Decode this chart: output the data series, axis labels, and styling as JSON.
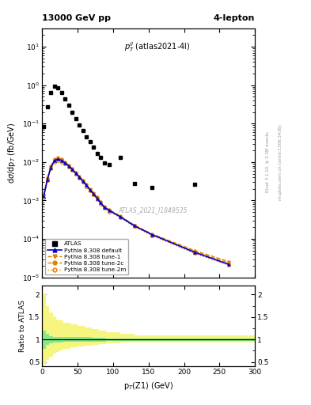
{
  "title_left": "13000 GeV pp",
  "title_right": "4-lepton",
  "plot_label": "$p_T^{ll}$ (atlas2021-4l)",
  "watermark": "ATLAS_2021_I1849535",
  "rivet_label": "Rivet 3.1.10, ≥ 2.3M events",
  "mcplots_label": "mcplots.cern.ch [arXiv:1306.3436]",
  "ylabel_main": "dσ/dp_T (fb/GeV)",
  "ylabel_ratio": "Ratio to ATLAS",
  "xlabel": "p$_T$(Z1) (GeV)",
  "xlim": [
    0,
    300
  ],
  "ylim_main": [
    1e-05,
    30
  ],
  "ylim_ratio": [
    0.4,
    2.2
  ],
  "atlas_x": [
    2.5,
    7.5,
    12.5,
    17.5,
    22.5,
    27.5,
    32.5,
    37.5,
    42.5,
    47.5,
    52.5,
    57.5,
    62.5,
    67.5,
    72.5,
    77.5,
    82.5,
    87.5,
    95,
    110,
    130,
    155,
    215
  ],
  "atlas_y": [
    0.083,
    0.28,
    0.65,
    0.95,
    0.87,
    0.65,
    0.45,
    0.3,
    0.195,
    0.135,
    0.092,
    0.065,
    0.046,
    0.034,
    0.024,
    0.017,
    0.013,
    0.0095,
    0.0085,
    0.013,
    0.0028,
    0.0022,
    0.0027
  ],
  "pythia_x": [
    2.5,
    7.5,
    12.5,
    17.5,
    22.5,
    27.5,
    32.5,
    37.5,
    42.5,
    47.5,
    52.5,
    57.5,
    62.5,
    67.5,
    72.5,
    77.5,
    82.5,
    87.5,
    95,
    110,
    130,
    155,
    215,
    262.5
  ],
  "pythia_default_y": [
    0.0013,
    0.0035,
    0.0072,
    0.011,
    0.012,
    0.011,
    0.0095,
    0.008,
    0.0065,
    0.0052,
    0.0041,
    0.0032,
    0.0025,
    0.0019,
    0.0015,
    0.00115,
    0.00088,
    0.00067,
    0.00055,
    0.00038,
    0.00022,
    0.00013,
    4.5e-05,
    2.2e-05
  ],
  "pythia_tune1_y": [
    0.0013,
    0.0035,
    0.0072,
    0.011,
    0.012,
    0.011,
    0.0095,
    0.008,
    0.0065,
    0.0052,
    0.0041,
    0.0032,
    0.0025,
    0.0019,
    0.0015,
    0.00115,
    0.00088,
    0.00067,
    0.00055,
    0.00038,
    0.00022,
    0.00013,
    4.7e-05,
    2.4e-05
  ],
  "pythia_tune2c_y": [
    0.0014,
    0.0038,
    0.0077,
    0.012,
    0.013,
    0.012,
    0.01,
    0.0084,
    0.0068,
    0.0054,
    0.0043,
    0.0034,
    0.0026,
    0.002,
    0.00158,
    0.00121,
    0.00092,
    0.0007,
    0.00057,
    0.0004,
    0.00023,
    0.000135,
    5e-05,
    2.6e-05
  ],
  "pythia_tune2m_y": [
    0.0012,
    0.0033,
    0.0068,
    0.01,
    0.011,
    0.01,
    0.009,
    0.0076,
    0.0062,
    0.0049,
    0.0039,
    0.003,
    0.0023,
    0.00178,
    0.0014,
    0.00108,
    0.00082,
    0.00063,
    0.00051,
    0.00036,
    0.00021,
    0.000122,
    4.2e-05,
    2.1e-05
  ],
  "ratio_x_edges": [
    0,
    5,
    10,
    15,
    20,
    25,
    30,
    40,
    50,
    60,
    70,
    80,
    90,
    110,
    130,
    300
  ],
  "ratio_green_lo": [
    0.8,
    0.88,
    0.92,
    0.94,
    0.94,
    0.94,
    0.95,
    0.95,
    0.95,
    0.95,
    0.96,
    0.96,
    0.97,
    0.97,
    0.97,
    0.97
  ],
  "ratio_green_hi": [
    1.2,
    1.12,
    1.08,
    1.06,
    1.06,
    1.06,
    1.05,
    1.05,
    1.05,
    1.05,
    1.04,
    1.04,
    1.03,
    1.03,
    1.03,
    1.03
  ],
  "ratio_yellow_lo": [
    0.45,
    0.55,
    0.62,
    0.68,
    0.73,
    0.76,
    0.8,
    0.83,
    0.85,
    0.87,
    0.88,
    0.9,
    0.92,
    0.93,
    0.93,
    0.93
  ],
  "ratio_yellow_hi": [
    2.0,
    1.75,
    1.6,
    1.52,
    1.45,
    1.42,
    1.38,
    1.34,
    1.3,
    1.26,
    1.23,
    1.2,
    1.17,
    1.12,
    1.1,
    1.1
  ],
  "color_atlas": "#000000",
  "color_default": "#0000cc",
  "color_tune1": "#e88000",
  "color_tune2c": "#e88000",
  "color_tune2m": "#e88000",
  "color_green": "#86e886",
  "color_yellow": "#f5f580",
  "background_color": "#ffffff"
}
